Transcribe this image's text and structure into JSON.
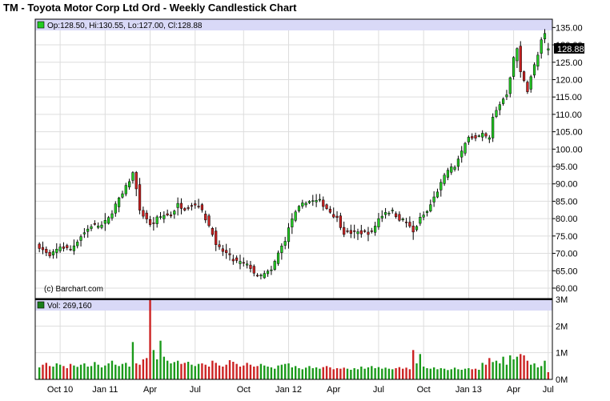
{
  "colors": {
    "up": "#22cc22",
    "down": "#cc2222",
    "legend_band": "#d9d9f7",
    "grid": "#dddddd",
    "frame": "#000000",
    "last_price_box": "#000000",
    "last_price_text": "#ffffff"
  },
  "chart_data": [
    {
      "type": "candlestick",
      "title": "TM - Toyota Motor Corp Ltd Ord - Weekly Candlestick Chart",
      "legend": "Op:128.50, Hi:130.55, Lo:127.00, Cl:128.88",
      "watermark": "(c) Barchart.com",
      "last_price": "128.88",
      "y_axis_side": "right",
      "ylim": [
        57,
        136
      ],
      "yticks": [
        60,
        65,
        70,
        75,
        80,
        85,
        90,
        95,
        100,
        105,
        110,
        115,
        120,
        125,
        130,
        135
      ],
      "ytick_labels": [
        "60.00",
        "65.00",
        "70.00",
        "75.00",
        "80.00",
        "85.00",
        "90.00",
        "95.00",
        "100.00",
        "105.00",
        "110.00",
        "115.00",
        "120.00",
        "125.00",
        "130.00",
        "135.00"
      ],
      "x_count": 148,
      "xticks": [
        {
          "label": "Oct 10",
          "index": 6
        },
        {
          "label": "Jan 11",
          "index": 19
        },
        {
          "label": "Apr",
          "index": 32
        },
        {
          "label": "Jul",
          "index": 45
        },
        {
          "label": "Oct",
          "index": 59
        },
        {
          "label": "Jan 12",
          "index": 72
        },
        {
          "label": "Apr",
          "index": 85
        },
        {
          "label": "Jul",
          "index": 98
        },
        {
          "label": "Oct",
          "index": 111
        },
        {
          "label": "Jan 13",
          "index": 124
        },
        {
          "label": "Apr",
          "index": 137
        },
        {
          "label": "Jul",
          "index": 150
        }
      ],
      "anchors": [
        [
          0,
          72
        ],
        [
          3,
          69
        ],
        [
          6,
          72
        ],
        [
          9,
          71
        ],
        [
          12,
          75
        ],
        [
          15,
          78
        ],
        [
          18,
          78
        ],
        [
          20,
          80
        ],
        [
          22,
          84
        ],
        [
          24,
          87
        ],
        [
          26,
          91
        ],
        [
          27,
          93
        ],
        [
          28,
          89
        ],
        [
          29,
          82
        ],
        [
          31,
          80
        ],
        [
          32,
          78
        ],
        [
          34,
          80
        ],
        [
          36,
          81
        ],
        [
          38,
          81
        ],
        [
          40,
          84
        ],
        [
          42,
          83
        ],
        [
          44,
          84
        ],
        [
          46,
          84
        ],
        [
          48,
          80
        ],
        [
          50,
          76
        ],
        [
          51,
          72
        ],
        [
          54,
          70
        ],
        [
          56,
          68
        ],
        [
          59,
          67
        ],
        [
          61,
          66
        ],
        [
          63,
          63
        ],
        [
          65,
          64
        ],
        [
          67,
          65
        ],
        [
          69,
          70
        ],
        [
          71,
          74
        ],
        [
          73,
          80
        ],
        [
          75,
          83
        ],
        [
          77,
          85
        ],
        [
          79,
          85
        ],
        [
          81,
          85
        ],
        [
          83,
          83
        ],
        [
          86,
          80
        ],
        [
          88,
          76
        ],
        [
          91,
          76
        ],
        [
          93,
          76
        ],
        [
          96,
          76
        ],
        [
          98,
          80
        ],
        [
          100,
          82
        ],
        [
          102,
          82
        ],
        [
          104,
          80
        ],
        [
          106,
          79
        ],
        [
          108,
          76
        ],
        [
          110,
          80
        ],
        [
          112,
          82
        ],
        [
          114,
          86
        ],
        [
          116,
          90
        ],
        [
          118,
          94
        ],
        [
          120,
          95
        ],
        [
          122,
          99
        ],
        [
          124,
          104
        ],
        [
          126,
          103
        ],
        [
          128,
          104
        ],
        [
          130,
          103
        ],
        [
          131,
          109
        ],
        [
          133,
          113
        ],
        [
          135,
          116
        ],
        [
          136,
          121
        ],
        [
          137,
          126
        ],
        [
          138,
          129
        ],
        [
          139,
          122
        ],
        [
          140,
          120
        ],
        [
          141,
          117
        ],
        [
          142,
          121
        ],
        [
          143,
          124
        ],
        [
          144,
          127
        ],
        [
          145,
          131
        ],
        [
          146,
          133
        ],
        [
          147,
          128.88
        ]
      ],
      "last_candle": {
        "open": 128.5,
        "high": 130.55,
        "low": 127.0,
        "close": 128.88
      }
    },
    {
      "type": "bar",
      "legend": "Vol: 269,160",
      "y_axis_side": "right",
      "ylim": [
        0,
        3000000
      ],
      "yticks": [
        0,
        1000000,
        2000000,
        3000000
      ],
      "ytick_labels": [
        "0M",
        "1M",
        "2M",
        "3M"
      ],
      "values_millions": [
        0.45,
        0.55,
        0.62,
        0.5,
        0.48,
        0.6,
        0.55,
        0.5,
        0.42,
        0.58,
        0.52,
        0.47,
        0.55,
        0.6,
        0.48,
        0.5,
        0.65,
        0.55,
        0.45,
        0.52,
        0.6,
        0.7,
        0.55,
        0.5,
        0.58,
        0.62,
        0.48,
        1.4,
        0.6,
        0.55,
        0.75,
        0.8,
        3.0,
        1.1,
        0.75,
        1.45,
        0.85,
        0.7,
        0.6,
        0.65,
        0.7,
        0.58,
        0.62,
        0.66,
        0.55,
        0.5,
        0.58,
        0.6,
        0.55,
        0.48,
        0.7,
        0.62,
        0.52,
        0.48,
        0.55,
        0.72,
        0.66,
        0.58,
        0.48,
        0.52,
        0.62,
        0.55,
        0.48,
        0.5,
        0.58,
        0.52,
        0.48,
        0.45,
        0.4,
        0.52,
        0.55,
        0.58,
        0.6,
        0.45,
        0.5,
        0.42,
        0.38,
        0.44,
        0.5,
        0.42,
        0.45,
        0.4,
        0.46,
        0.5,
        0.45,
        0.38,
        0.42,
        0.4,
        0.44,
        0.4,
        0.36,
        0.42,
        0.38,
        0.48,
        0.4,
        0.45,
        0.5,
        0.42,
        0.46,
        0.4,
        0.44,
        0.4,
        0.38,
        0.42,
        0.46,
        0.4,
        0.44,
        0.38,
        1.1,
        0.6,
        0.95,
        0.48,
        0.42,
        0.4,
        0.45,
        0.38,
        0.42,
        0.4,
        0.35,
        0.38,
        0.44,
        0.38,
        0.36,
        0.4,
        0.42,
        0.38,
        0.4,
        0.36,
        0.62,
        0.55,
        0.8,
        0.65,
        0.7,
        0.6,
        0.85,
        0.55,
        0.9,
        0.75,
        0.85,
        0.95,
        0.9,
        0.7,
        0.55,
        0.6,
        0.45,
        0.5,
        0.7,
        0.27
      ]
    }
  ]
}
